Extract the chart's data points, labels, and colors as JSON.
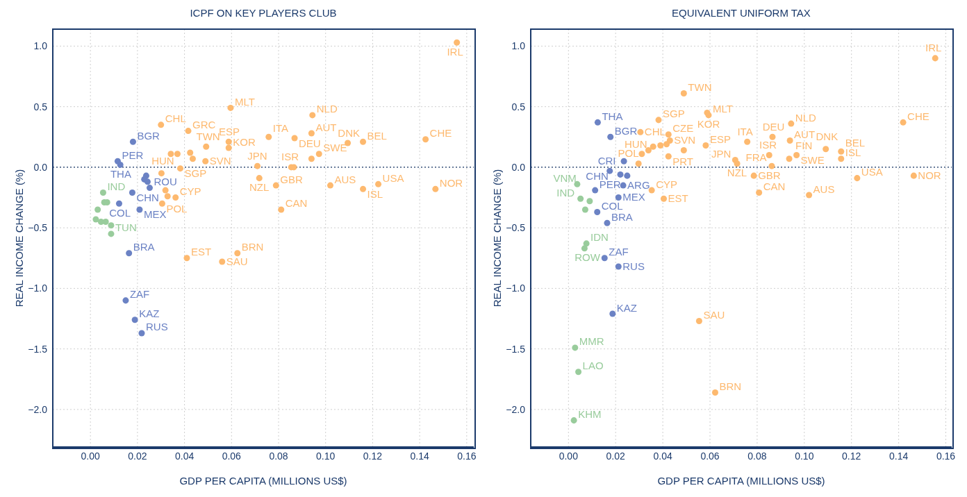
{
  "chart_data": [
    {
      "type": "scatter",
      "title": "ICPF ON KEY PLAYERS CLUB",
      "xlabel": "GDP PER CAPITA (MILLIONS US$)",
      "ylabel": "REAL INCOME CHANGE (%)",
      "xlim": [
        -0.016,
        0.163
      ],
      "ylim": [
        -2.31,
        1.14
      ],
      "xticks": [
        {
          "value": 0,
          "label": "0.00"
        },
        {
          "value": 0.02,
          "label": "0.02"
        },
        {
          "value": 0.04,
          "label": "0.04"
        },
        {
          "value": 0.06,
          "label": "0.06"
        },
        {
          "value": 0.08,
          "label": "0.08"
        },
        {
          "value": 0.1,
          "label": "0.10"
        },
        {
          "value": 0.12,
          "label": "0.12"
        },
        {
          "value": 0.14,
          "label": "0.14"
        },
        {
          "value": 0.16,
          "label": "0.16"
        }
      ],
      "yticks": [
        {
          "value": -2,
          "label": "−2.0"
        },
        {
          "value": -1.5,
          "label": "−1.5"
        },
        {
          "value": -1,
          "label": "−1.0"
        },
        {
          "value": -0.5,
          "label": "−0.5"
        },
        {
          "value": 0,
          "label": "0.0"
        },
        {
          "value": 0.5,
          "label": "0.5"
        },
        {
          "value": 1,
          "label": "1.0"
        }
      ],
      "grid": true,
      "marker": "circle",
      "ref_lines": [
        {
          "axis": "y",
          "value": 0,
          "color": "#1b3a6b",
          "line_style": "dotted"
        }
      ],
      "series": [
        {
          "color": "#fdb96f",
          "x": [
            0.1558,
            0.1425,
            0.1467,
            0.1224,
            0.1159,
            0.102,
            0.1159,
            0.1094,
            0.0972,
            0.094,
            0.0944,
            0.094,
            0.0868,
            0.0854,
            0.0865,
            0.0758,
            0.071,
            0.0718,
            0.0789,
            0.0811,
            0.0596,
            0.0588,
            0.0588,
            0.0492,
            0.0489,
            0.0416,
            0.03,
            0.0342,
            0.037,
            0.0424,
            0.0435,
            0.0382,
            0.0302,
            0.0319,
            0.0328,
            0.0362,
            0.0305,
            0.041,
            0.056,
            0.0625
          ],
          "values": [
            1.03,
            0.23,
            -0.18,
            -0.14,
            -0.18,
            -0.15,
            0.21,
            0.2,
            0.11,
            0.07,
            0.43,
            0.28,
            0.24,
            0,
            0,
            0.25,
            0.01,
            -0.09,
            -0.15,
            -0.35,
            0.49,
            0.21,
            0.16,
            0.17,
            0.05,
            0.3,
            0.35,
            0.11,
            0.11,
            0.12,
            0.07,
            -0.01,
            -0.05,
            -0.19,
            -0.24,
            -0.25,
            -0.3,
            -0.75,
            -0.78,
            -0.71
          ],
          "value_labels": [
            "IRL",
            "CHE",
            "NOR",
            "USA",
            "ISL",
            "AUS",
            "BEL",
            "DNK",
            "SWE",
            null,
            "NLD",
            "AUT",
            "DEU",
            "ISR",
            null,
            "ITA",
            "JPN",
            "NZL",
            "GBR",
            "CAN",
            "MLT",
            "ESP",
            "KOR",
            "TWN",
            "SVN",
            "GRC",
            "CHL",
            null,
            null,
            null,
            null,
            "SGP",
            "HUN",
            null,
            null,
            "CYP",
            "POL",
            "EST",
            "SAU",
            "BRN"
          ]
        },
        {
          "color": "#6b82c4",
          "x": [
            0.0181,
            0.0116,
            0.0127,
            0.0237,
            0.0229,
            0.0252,
            0.0243,
            0.0178,
            0.0122,
            0.0209,
            0.0164,
            0.015,
            0.0189,
            0.0218
          ],
          "values": [
            0.21,
            0.05,
            0.02,
            -0.07,
            -0.1,
            -0.17,
            -0.12,
            -0.21,
            -0.3,
            -0.35,
            -0.71,
            -1.1,
            -1.26,
            -1.37
          ],
          "value_labels": [
            "BGR",
            "PER",
            "THA",
            null,
            null,
            "ROU",
            null,
            "CHN",
            "COL",
            "MEX",
            "BRA",
            "ZAF",
            "KAZ",
            "RUS"
          ]
        },
        {
          "color": "#99cc9c",
          "x": [
            0.0054,
            0.0059,
            0.0071,
            0.0031,
            0.0023,
            0.0045,
            0.0065,
            0.0088,
            0.0088
          ],
          "values": [
            -0.21,
            -0.29,
            -0.29,
            -0.35,
            -0.43,
            -0.45,
            -0.45,
            -0.48,
            -0.55
          ],
          "value_labels": [
            "IND",
            null,
            null,
            null,
            null,
            null,
            null,
            null,
            "TUN"
          ]
        }
      ]
    },
    {
      "type": "scatter",
      "title": "EQUIVALENT UNIFORM TAX",
      "xlabel": "GDP PER CAPITA (MILLIONS US$)",
      "ylabel": "REAL INCOME CHANGE (%)",
      "xlim": [
        -0.016,
        0.1625
      ],
      "ylim": [
        -2.31,
        1.14
      ],
      "xticks": [
        {
          "value": 0,
          "label": "0.00"
        },
        {
          "value": 0.02,
          "label": "0.02"
        },
        {
          "value": 0.04,
          "label": "0.04"
        },
        {
          "value": 0.06,
          "label": "0.06"
        },
        {
          "value": 0.08,
          "label": "0.08"
        },
        {
          "value": 0.1,
          "label": "0.10"
        },
        {
          "value": 0.12,
          "label": "0.12"
        },
        {
          "value": 0.14,
          "label": "0.14"
        },
        {
          "value": 0.16,
          "label": "0.16"
        }
      ],
      "yticks": [
        {
          "value": -2,
          "label": "−2.0"
        },
        {
          "value": -1.5,
          "label": "−1.5"
        },
        {
          "value": -1,
          "label": "−1.0"
        },
        {
          "value": -0.5,
          "label": "−0.5"
        },
        {
          "value": 0,
          "label": "0.0"
        },
        {
          "value": 0.5,
          "label": "0.5"
        },
        {
          "value": 1,
          "label": "1.0"
        }
      ],
      "grid": true,
      "marker": "circle",
      "ref_lines": [
        {
          "axis": "y",
          "value": 0,
          "color": "#1b3a6b",
          "line_style": "dotted"
        }
      ],
      "series": [
        {
          "color": "#fdb96f",
          "x": [
            0.1555,
            0.1419,
            0.1464,
            0.1224,
            0.1156,
            0.102,
            0.1156,
            0.1091,
            0.0967,
            0.0936,
            0.0944,
            0.0939,
            0.0865,
            0.0851,
            0.0862,
            0.0758,
            0.0707,
            0.0715,
            0.0786,
            0.0808,
            0.0594,
            0.0582,
            0.0588,
            0.0489,
            0.0489,
            0.043,
            0.0305,
            0.039,
            0.0416,
            0.0424,
            0.0424,
            0.0382,
            0.0339,
            0.0359,
            0.0297,
            0.0353,
            0.0311,
            0.0404,
            0.0554,
            0.0622
          ],
          "values": [
            0.9,
            0.37,
            -0.07,
            -0.09,
            0.07,
            -0.23,
            0.13,
            0.15,
            0.1,
            0.07,
            0.36,
            0.22,
            0.25,
            0.1,
            0.01,
            0.21,
            0.06,
            0.03,
            -0.07,
            -0.21,
            0.43,
            0.18,
            0.45,
            0.61,
            0.14,
            0.22,
            0.29,
            0.18,
            0.19,
            0.27,
            0.09,
            0.39,
            0.14,
            0.17,
            0.03,
            -0.19,
            0.11,
            -0.26,
            -1.27,
            -1.86
          ],
          "value_labels": [
            "IRL",
            "CHE",
            "NOR",
            "USA",
            "ISL",
            "AUS",
            "BEL",
            "DNK",
            "SWE",
            "FIN",
            "NLD",
            "AUT",
            "DEU",
            "ISR",
            "FRA",
            "ITA",
            "JPN",
            "NZL",
            "GBR",
            "CAN",
            "MLT",
            "ESP",
            "KOR",
            "TWN",
            "SVN",
            null,
            "CHL",
            null,
            null,
            "CZE",
            "PRT",
            "SGP",
            "HUN",
            null,
            null,
            "CYP",
            "POL",
            "EST",
            "SAU",
            "BRN"
          ]
        },
        {
          "color": "#6b82c4",
          "x": [
            0.0178,
            0.0113,
            0.0124,
            0.0235,
            0.0232,
            0.022,
            0.0249,
            0.0175,
            0.0122,
            0.0212,
            0.0164,
            0.0153,
            0.0187,
            0.0212
          ],
          "values": [
            0.25,
            -0.19,
            0.37,
            0.05,
            -0.15,
            -0.06,
            -0.07,
            -0.03,
            -0.37,
            -0.25,
            -0.46,
            -0.75,
            -1.21,
            -0.82
          ],
          "value_labels": [
            "BGR",
            "PER",
            "THA",
            "CRI",
            "ARG",
            null,
            null,
            "CHN",
            "COL",
            "MEX",
            "BRA",
            "ZAF",
            "KAZ",
            "RUS"
          ]
        },
        {
          "color": "#99cc9c",
          "x": [
            0.0051,
            0.0037,
            0.009,
            0.0076,
            0.0042,
            0.0023,
            0.0028,
            0.0068,
            0.0071
          ],
          "values": [
            -0.26,
            -0.14,
            -0.28,
            -0.63,
            -1.69,
            -2.09,
            -1.49,
            -0.67,
            -0.35
          ],
          "value_labels": [
            "IND",
            "VNM",
            null,
            "IDN",
            "LAO",
            "KHM",
            "MMR",
            "ROW",
            null
          ]
        }
      ]
    }
  ]
}
